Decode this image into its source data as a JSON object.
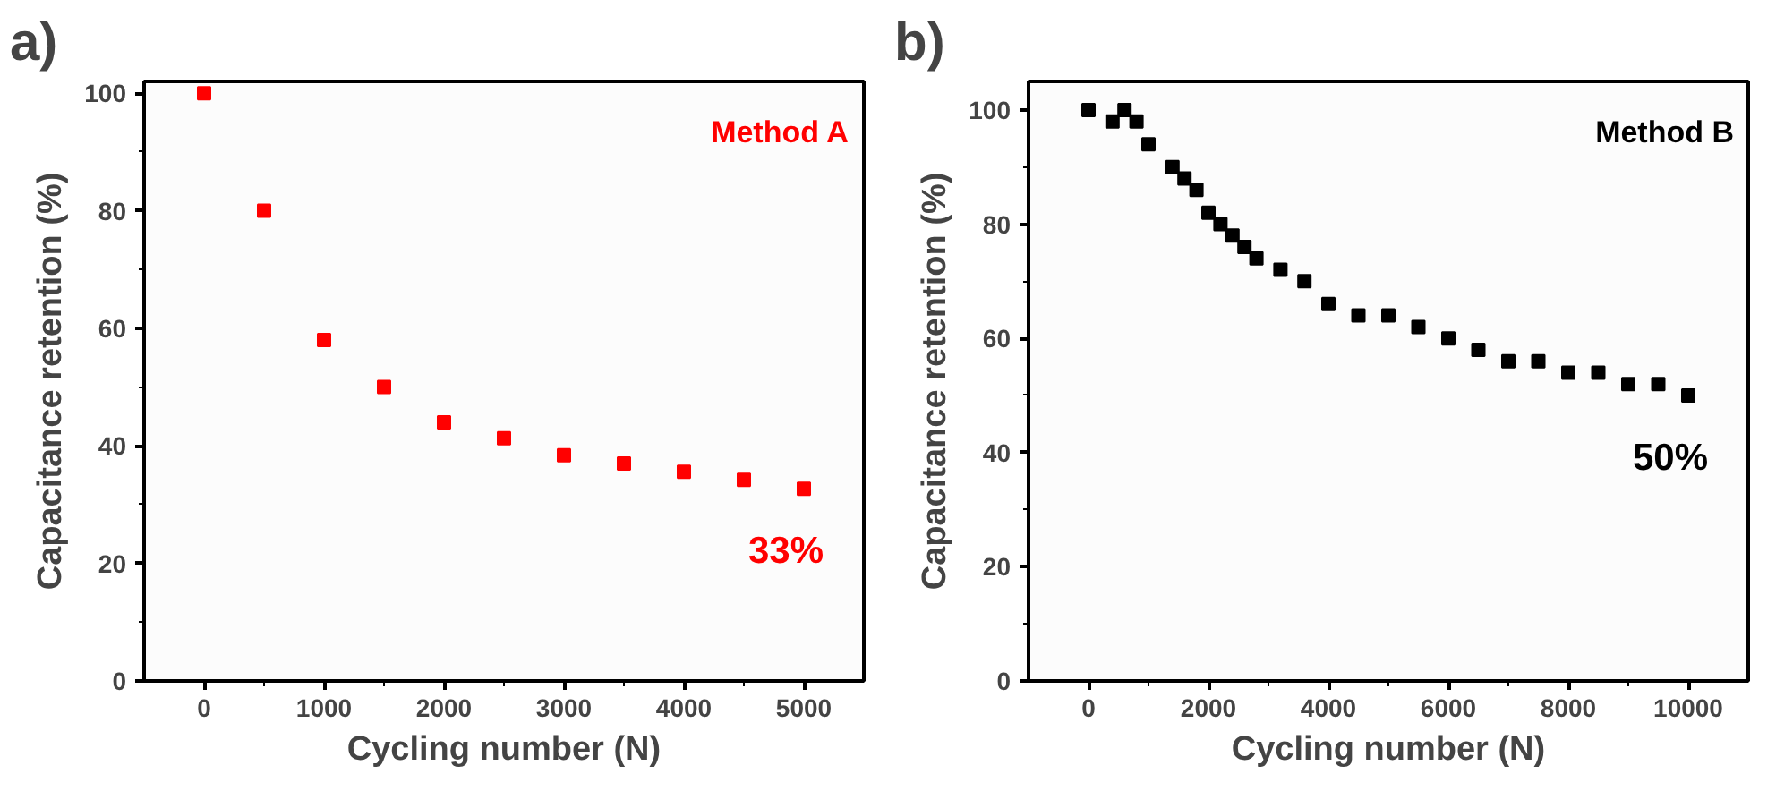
{
  "chart_data": [
    {
      "type": "scatter",
      "title": "a)",
      "xlabel": "Cycling number (N)",
      "ylabel": "Capacitance retention (%)",
      "annotations": [
        "Method A",
        "33%"
      ],
      "marker": "square",
      "grid": false,
      "x": [
        0,
        500,
        1000,
        1500,
        2000,
        2500,
        3000,
        3500,
        4000,
        4500,
        5000
      ],
      "series": [
        {
          "color": "#ff0000",
          "values": [
            100,
            80,
            58,
            50,
            44,
            41.3,
            38.4,
            37,
            35.6,
            34.2,
            32.7
          ]
        }
      ],
      "xlim": [
        -500,
        5500
      ],
      "ylim": [
        0,
        102
      ],
      "xticks": [
        0,
        1000,
        2000,
        3000,
        4000,
        5000
      ],
      "yticks": [
        0,
        20,
        40,
        60,
        80,
        100
      ]
    },
    {
      "type": "scatter",
      "title": "b)",
      "xlabel": "Cycling number (N)",
      "ylabel": "Capacitance retention (%)",
      "annotations": [
        "Method B",
        "50%"
      ],
      "marker": "square",
      "grid": false,
      "x": [
        0,
        400,
        600,
        800,
        1000,
        1400,
        1600,
        1800,
        2000,
        2200,
        2400,
        2600,
        2800,
        3200,
        3600,
        4000,
        4500,
        5000,
        5500,
        6000,
        6500,
        7000,
        7500,
        8000,
        8500,
        9000,
        9500,
        10000
      ],
      "series": [
        {
          "color": "#000000",
          "values": [
            100,
            98,
            100,
            98,
            94,
            90,
            88,
            86,
            82,
            80,
            78,
            76,
            74,
            72,
            70,
            66,
            64,
            64,
            62,
            60,
            58,
            56,
            56,
            54,
            54,
            52,
            52,
            50
          ]
        }
      ],
      "xlim": [
        -1000,
        11000
      ],
      "ylim": [
        0,
        105
      ],
      "xticks": [
        0,
        2000,
        4000,
        6000,
        8000,
        10000
      ],
      "yticks": [
        0,
        20,
        40,
        60,
        80,
        100
      ]
    }
  ]
}
